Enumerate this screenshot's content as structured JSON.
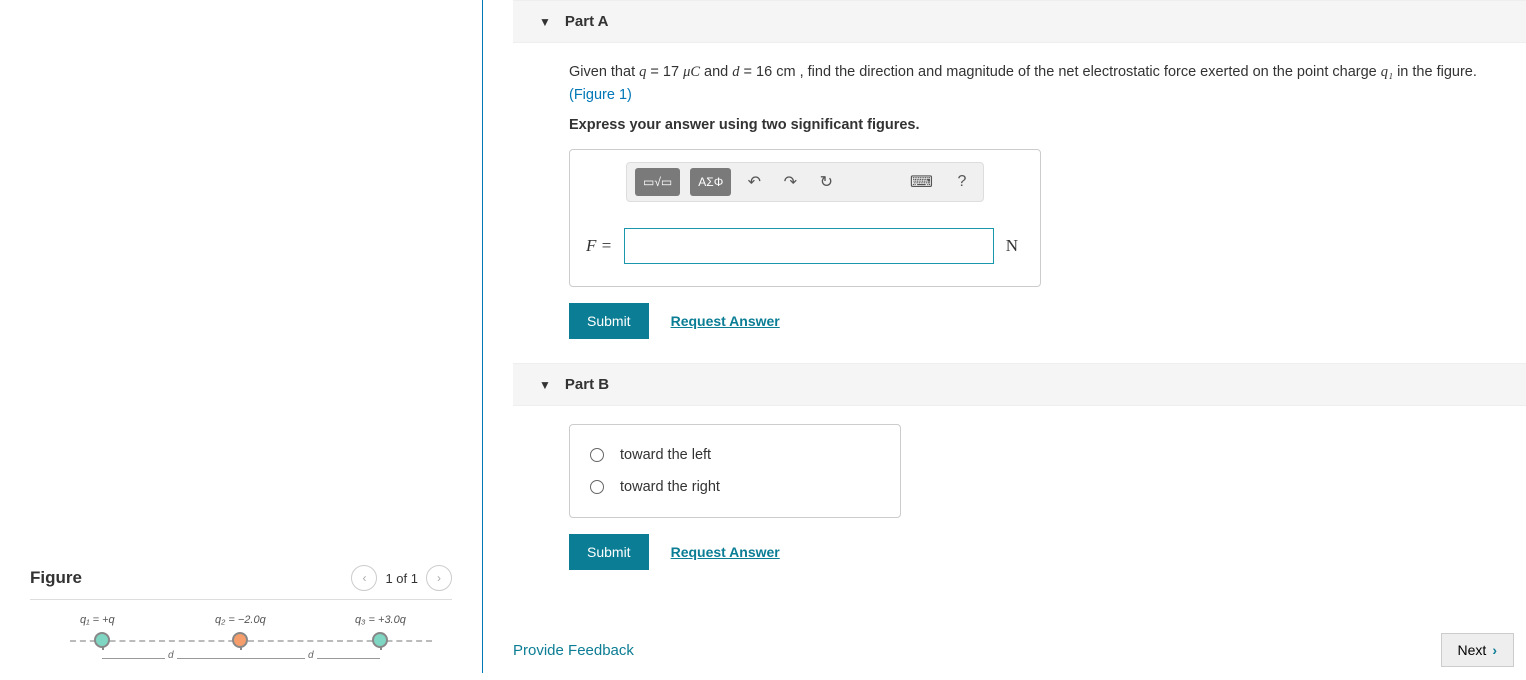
{
  "figure": {
    "title": "Figure",
    "nav_count": "1 of 1",
    "charges": [
      {
        "label": "q₁ = +q",
        "color": "#7fd6c2"
      },
      {
        "label": "q₂ = −2.0q",
        "color": "#f59e6c"
      },
      {
        "label": "q₃ = +3.0q",
        "color": "#7fd6c2"
      }
    ],
    "distance_label": "d",
    "axis_color": "#bbbbbb"
  },
  "partA": {
    "title": "Part A",
    "problem_prefix": "Given that ",
    "var_q": "q",
    "eq1": " = 17 ",
    "unit_q": "μC",
    "mid": " and ",
    "var_d": "d",
    "eq2": " = 16 ",
    "unit_d": "cm",
    "problem_suffix_1": " , find the direction and magnitude of the net electrostatic force exerted on the point charge ",
    "var_q1": "q₁",
    "problem_suffix_2": " in the figure.",
    "figure_link": "(Figure 1)",
    "instruction": "Express your answer using two significant figures.",
    "toolbar": {
      "templates_label": "▭√▭",
      "greek_label": "ΑΣΦ",
      "undo": "↶",
      "redo": "↷",
      "reset": "↻",
      "keyboard": "⌨",
      "help": "?"
    },
    "var_label": "F =",
    "unit_label": "N",
    "input_value": "",
    "submit": "Submit",
    "request_answer": "Request Answer"
  },
  "partB": {
    "title": "Part B",
    "options": [
      "toward the left",
      "toward the right"
    ],
    "submit": "Submit",
    "request_answer": "Request Answer"
  },
  "footer": {
    "feedback": "Provide Feedback",
    "next": "Next"
  },
  "colors": {
    "accent": "#0b7d94",
    "divider": "#0077b6",
    "panel_bg": "#f5f5f5",
    "toolbar_bg": "#f0f0f0",
    "border": "#cccccc"
  }
}
